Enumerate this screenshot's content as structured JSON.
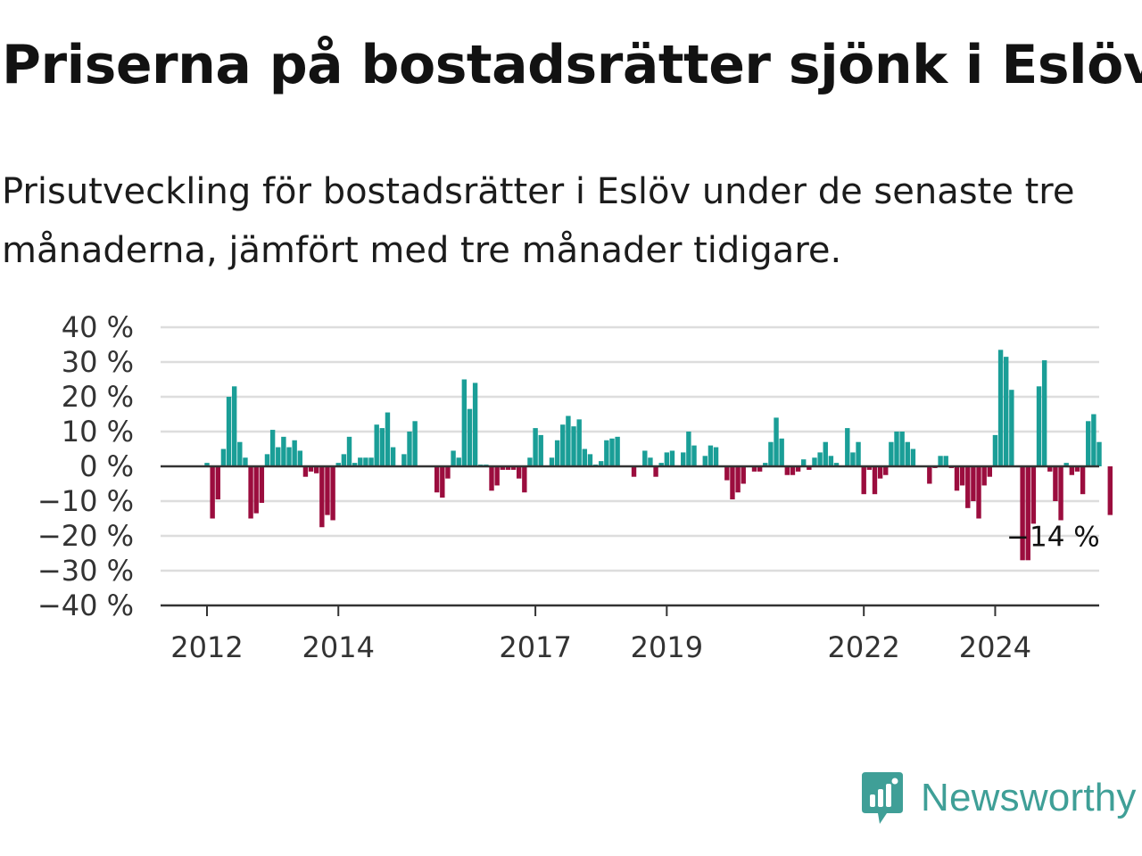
{
  "title": "Priserna på bostadsrätter sjönk i Eslöv",
  "subtitle": "Prisutveckling för bostadsrätter i Eslöv under de senaste tre månaderna, jämfört med tre månader tidigare.",
  "brand": {
    "name": "Newsworthy",
    "icon": "newsworthy-logo-icon",
    "color": "#3f9f97"
  },
  "chart_data": {
    "type": "bar",
    "y_unit": "%",
    "ylim": [
      -40,
      40
    ],
    "y_ticks": [
      40,
      30,
      20,
      10,
      0,
      -10,
      -20,
      -30,
      -40
    ],
    "y_tick_labels": [
      "40 %",
      "30 %",
      "20 %",
      "10 %",
      "0 %",
      "−10 %",
      "−20 %",
      "−30 %",
      "−40 %"
    ],
    "x_tick_labels": [
      "2012",
      "2014",
      "2017",
      "2019",
      "2022",
      "2024"
    ],
    "x_tick_index": [
      0,
      24,
      60,
      84,
      120,
      144
    ],
    "grid": true,
    "colors": {
      "positive": "#1a9e97",
      "negative": "#9b0d3e",
      "zero_line": "#333333",
      "grid": "#dddddd"
    },
    "last_value_label": "−14 %",
    "start": "2012-01",
    "values": [
      1,
      -15,
      -9.5,
      5,
      20,
      23,
      7,
      2.5,
      -15,
      -13.5,
      -10.5,
      3.5,
      10.5,
      5.5,
      8.5,
      5.5,
      7.5,
      4.5,
      -3,
      -1.5,
      -2,
      -17.5,
      -14,
      -15.5,
      1,
      3.5,
      8.5,
      1,
      2.5,
      2.5,
      2.5,
      12,
      11,
      15.5,
      5.5,
      0,
      3.5,
      10,
      13,
      0,
      0,
      0,
      -7.5,
      -9,
      -3.5,
      4.5,
      2.5,
      25,
      16.5,
      24,
      0.5,
      0.5,
      -7,
      -5.5,
      -1,
      -1,
      -1,
      -3.5,
      -7.5,
      2.5,
      11,
      9,
      0,
      2.5,
      7.5,
      12,
      14.5,
      11.5,
      13.5,
      5,
      3.5,
      0.5,
      1.5,
      7.5,
      8,
      8.5,
      0,
      0,
      -3,
      0,
      4.5,
      2.5,
      -3,
      1,
      4,
      4.5,
      0,
      4,
      10,
      6,
      0,
      3,
      6,
      5.5,
      0,
      -4,
      -9.5,
      -7.5,
      -5,
      0,
      -1.5,
      -1.5,
      1,
      7,
      14,
      8,
      -2.5,
      -2.5,
      -1.5,
      2,
      -1,
      2.5,
      4,
      7,
      3,
      1,
      0,
      11,
      4,
      7,
      -8,
      -1,
      -8,
      -3.5,
      -2.5,
      7,
      10,
      10,
      7,
      5,
      0,
      0,
      -5,
      -0.5,
      3,
      3,
      -0.5,
      -7,
      -5.5,
      -12,
      -10,
      -15,
      -5.5,
      -3,
      9,
      33.5,
      31.5,
      22,
      0,
      -27,
      -27,
      -16.5,
      23,
      30.5,
      -1.5,
      -10,
      -15.5,
      1,
      -2.5,
      -1.5,
      -8,
      13,
      15,
      7,
      0,
      -14
    ]
  }
}
